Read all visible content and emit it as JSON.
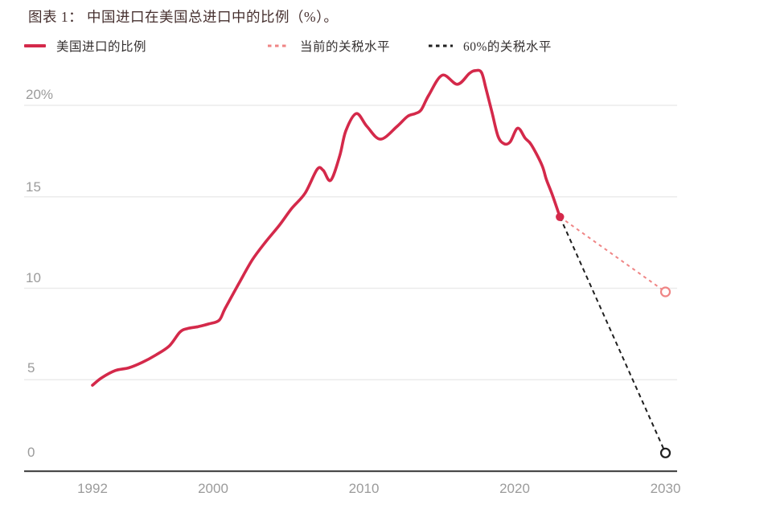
{
  "title": "图表 1：  中国进口在美国总进口中的比例（%）。",
  "legend": [
    {
      "label": "美国进口的比例",
      "color": "#d4294a",
      "style": "solid"
    },
    {
      "label": "当前的关税水平",
      "color": "#ef8585",
      "style": "dashed"
    },
    {
      "label": "60%的关税水平",
      "color": "#1f1f1f",
      "style": "dashed"
    }
  ],
  "colors": {
    "main_line": "#d4294a",
    "current_tariff_line": "#ef8585",
    "tariff60_line": "#1f1f1f",
    "gridline": "#ebebeb",
    "axis": "#4a4a4a",
    "tick_label": "#9b9b9b"
  },
  "chart_data": {
    "type": "line",
    "title": "中国进口在美国总进口中的比例（%）",
    "xlabel": "",
    "ylabel": "",
    "x_ticks": [
      1992,
      2000,
      2010,
      2020,
      2030
    ],
    "x_tick_labels": [
      "1992",
      "2000",
      "2010",
      "2020",
      "2030"
    ],
    "y_ticks": [
      0,
      5,
      10,
      15,
      20
    ],
    "y_tick_labels": [
      "0",
      "5",
      "10",
      "15",
      "20%"
    ],
    "xlim": [
      1987.5,
      2030.8
    ],
    "ylim": [
      0,
      22.5
    ],
    "grid": "horizontal",
    "legend_position": "top",
    "series": [
      {
        "name": "美国进口的比例",
        "line_style": "solid",
        "color": "#d4294a",
        "end_marker": "filled_dot",
        "points": [
          [
            1992.0,
            4.7
          ],
          [
            1992.6,
            5.1
          ],
          [
            1993.5,
            5.5
          ],
          [
            1994.4,
            5.65
          ],
          [
            1995.3,
            5.95
          ],
          [
            1996.2,
            6.35
          ],
          [
            1997.1,
            6.85
          ],
          [
            1997.8,
            7.6
          ],
          [
            1998.3,
            7.8
          ],
          [
            1999.0,
            7.9
          ],
          [
            1999.7,
            8.05
          ],
          [
            2000.4,
            8.25
          ],
          [
            2000.8,
            8.9
          ],
          [
            2001.7,
            10.25
          ],
          [
            2002.6,
            11.55
          ],
          [
            2003.5,
            12.55
          ],
          [
            2004.4,
            13.45
          ],
          [
            2005.2,
            14.35
          ],
          [
            2006.1,
            15.2
          ],
          [
            2006.9,
            16.5
          ],
          [
            2007.3,
            16.45
          ],
          [
            2007.8,
            15.9
          ],
          [
            2008.4,
            17.25
          ],
          [
            2008.8,
            18.6
          ],
          [
            2009.5,
            19.55
          ],
          [
            2010.2,
            18.85
          ],
          [
            2011.1,
            18.15
          ],
          [
            2012.2,
            18.85
          ],
          [
            2012.9,
            19.4
          ],
          [
            2013.4,
            19.55
          ],
          [
            2013.8,
            19.75
          ],
          [
            2014.3,
            20.55
          ],
          [
            2015.2,
            21.65
          ],
          [
            2016.2,
            21.15
          ],
          [
            2017.0,
            21.75
          ],
          [
            2017.4,
            21.9
          ],
          [
            2017.8,
            21.8
          ],
          [
            2018.1,
            20.9
          ],
          [
            2018.5,
            19.6
          ],
          [
            2018.9,
            18.3
          ],
          [
            2019.3,
            17.9
          ],
          [
            2019.7,
            18.0
          ],
          [
            2020.2,
            18.75
          ],
          [
            2020.7,
            18.2
          ],
          [
            2021.1,
            17.85
          ],
          [
            2021.8,
            16.75
          ],
          [
            2022.1,
            15.95
          ],
          [
            2022.5,
            15.1
          ],
          [
            2023.0,
            13.9
          ]
        ]
      },
      {
        "name": "当前的关税水平",
        "line_style": "dashed",
        "color": "#ef8585",
        "end_marker": "open_circle",
        "points": [
          [
            2023.0,
            13.9
          ],
          [
            2030.0,
            9.8
          ]
        ]
      },
      {
        "name": "60%的关税水平",
        "line_style": "dashed",
        "color": "#1f1f1f",
        "end_marker": "open_circle",
        "points": [
          [
            2023.0,
            13.9
          ],
          [
            2030.0,
            1.0
          ]
        ]
      }
    ]
  }
}
